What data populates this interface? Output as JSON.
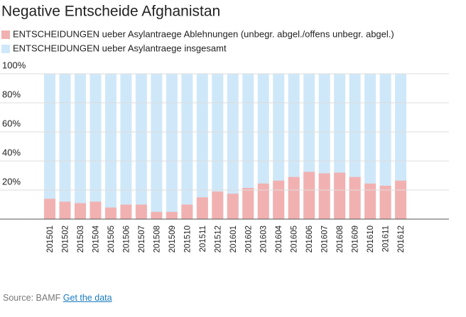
{
  "chart_data": {
    "type": "bar",
    "title": "Negative Entscheide Afghanistan",
    "categories": [
      "201501",
      "201502",
      "201503",
      "201504",
      "201505",
      "201506",
      "201507",
      "201508",
      "201509",
      "201510",
      "201511",
      "201512",
      "201601",
      "201602",
      "201603",
      "201604",
      "201605",
      "201606",
      "201607",
      "201608",
      "201609",
      "201610",
      "201611",
      "201612"
    ],
    "series": [
      {
        "name": "ENTSCHEIDUNGEN ueber Asylantraege Ablehnungen (unbegr. abgel./offens unbegr. abgel.)",
        "color": "#f2b1b1",
        "values": [
          14,
          12,
          11,
          12,
          8,
          10,
          10,
          5,
          5,
          10,
          15,
          19,
          17.5,
          21.5,
          24.5,
          26.5,
          29,
          32.5,
          31.5,
          32,
          29,
          24.5,
          23,
          26.5
        ]
      },
      {
        "name": "ENTSCHEIDUNGEN ueber Asylantraege insgesamt",
        "color": "#cfe8f9",
        "values": [
          100,
          100,
          100,
          100,
          100,
          100,
          100,
          100,
          100,
          100,
          100,
          100,
          100,
          100,
          100,
          100,
          100,
          100,
          100,
          100,
          100,
          100,
          100,
          100
        ]
      }
    ],
    "stacked": false,
    "ylim": [
      0,
      100
    ],
    "yticks": [
      {
        "value": 0,
        "label": ""
      },
      {
        "value": 20,
        "label": "20%"
      },
      {
        "value": 40,
        "label": "40%"
      },
      {
        "value": 60,
        "label": "60%"
      },
      {
        "value": 80,
        "label": "80%"
      },
      {
        "value": 100,
        "label": "100%"
      }
    ],
    "grid": true,
    "source": "Source: BAMF",
    "source_link": "Get the data"
  }
}
